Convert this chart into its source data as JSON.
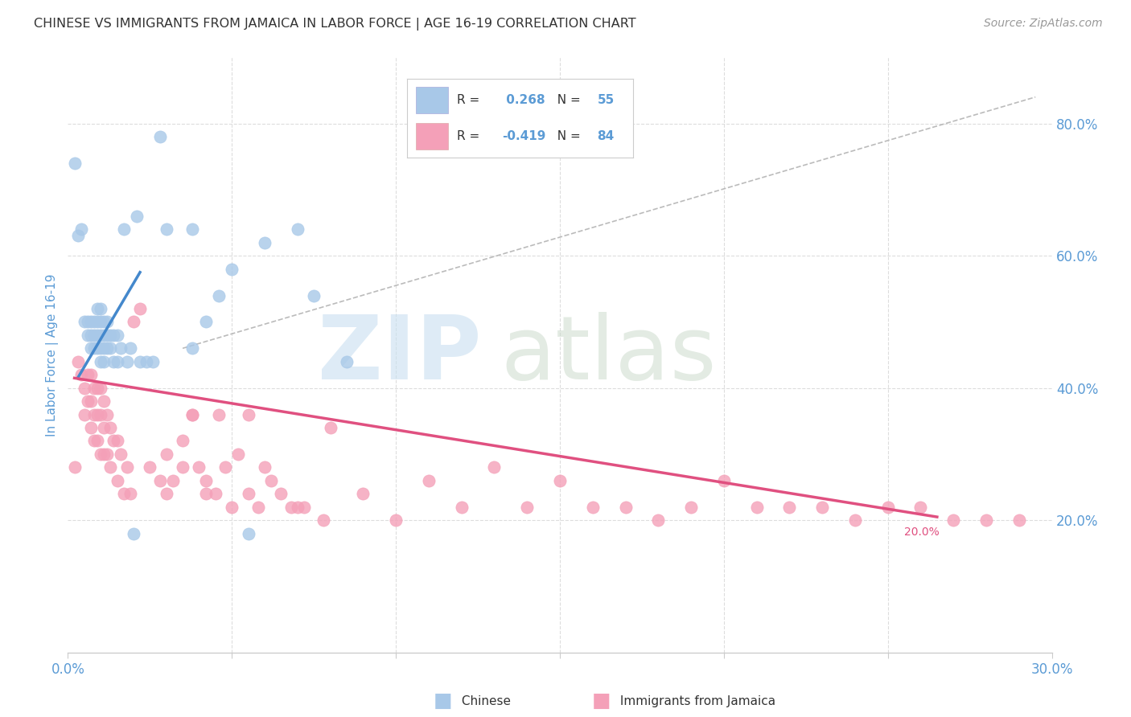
{
  "title": "CHINESE VS IMMIGRANTS FROM JAMAICA IN LABOR FORCE | AGE 16-19 CORRELATION CHART",
  "source": "Source: ZipAtlas.com",
  "ylabel": "In Labor Force | Age 16-19",
  "xlim": [
    0.0,
    0.3
  ],
  "ylim": [
    0.0,
    0.9
  ],
  "xticks": [
    0.0,
    0.05,
    0.1,
    0.15,
    0.2,
    0.25,
    0.3
  ],
  "xticklabels": [
    "0.0%",
    "",
    "",
    "",
    "",
    "",
    "30.0%"
  ],
  "yticks_right": [
    0.2,
    0.4,
    0.6,
    0.8
  ],
  "ytick_right_labels": [
    "20.0%",
    "40.0%",
    "60.0%",
    "80.0%"
  ],
  "watermark_zip": "ZIP",
  "watermark_atlas": "atlas",
  "legend_R1": "0.268",
  "legend_N1": "55",
  "legend_R2": "-0.419",
  "legend_N2": "84",
  "blue_scatter_color": "#a8c8e8",
  "pink_scatter_color": "#f4a0b8",
  "blue_line_color": "#4488cc",
  "pink_line_color": "#e05080",
  "dashed_line_color": "#bbbbbb",
  "axis_label_color": "#5b9bd5",
  "grid_color": "#dddddd",
  "chinese_points_x": [
    0.002,
    0.003,
    0.004,
    0.005,
    0.006,
    0.006,
    0.007,
    0.007,
    0.007,
    0.008,
    0.008,
    0.008,
    0.009,
    0.009,
    0.009,
    0.009,
    0.01,
    0.01,
    0.01,
    0.01,
    0.01,
    0.011,
    0.011,
    0.011,
    0.011,
    0.012,
    0.012,
    0.012,
    0.013,
    0.013,
    0.014,
    0.014,
    0.015,
    0.015,
    0.016,
    0.017,
    0.018,
    0.019,
    0.02,
    0.021,
    0.022,
    0.024,
    0.026,
    0.028,
    0.03,
    0.038,
    0.038,
    0.042,
    0.046,
    0.05,
    0.055,
    0.06,
    0.07,
    0.075,
    0.085
  ],
  "chinese_points_y": [
    0.74,
    0.63,
    0.64,
    0.5,
    0.5,
    0.48,
    0.5,
    0.48,
    0.46,
    0.5,
    0.48,
    0.46,
    0.52,
    0.5,
    0.48,
    0.46,
    0.52,
    0.5,
    0.48,
    0.46,
    0.44,
    0.5,
    0.48,
    0.46,
    0.44,
    0.5,
    0.48,
    0.46,
    0.48,
    0.46,
    0.48,
    0.44,
    0.48,
    0.44,
    0.46,
    0.64,
    0.44,
    0.46,
    0.18,
    0.66,
    0.44,
    0.44,
    0.44,
    0.78,
    0.64,
    0.64,
    0.46,
    0.5,
    0.54,
    0.58,
    0.18,
    0.62,
    0.64,
    0.54,
    0.44
  ],
  "jamaica_points_x": [
    0.002,
    0.003,
    0.004,
    0.005,
    0.005,
    0.006,
    0.006,
    0.007,
    0.007,
    0.007,
    0.008,
    0.008,
    0.008,
    0.009,
    0.009,
    0.009,
    0.01,
    0.01,
    0.01,
    0.011,
    0.011,
    0.011,
    0.012,
    0.012,
    0.013,
    0.013,
    0.014,
    0.015,
    0.015,
    0.016,
    0.017,
    0.018,
    0.019,
    0.02,
    0.022,
    0.025,
    0.028,
    0.03,
    0.032,
    0.035,
    0.038,
    0.042,
    0.046,
    0.05,
    0.055,
    0.06,
    0.065,
    0.07,
    0.08,
    0.09,
    0.1,
    0.11,
    0.12,
    0.13,
    0.14,
    0.15,
    0.16,
    0.17,
    0.18,
    0.19,
    0.2,
    0.21,
    0.22,
    0.23,
    0.24,
    0.25,
    0.26,
    0.27,
    0.28,
    0.29,
    0.03,
    0.035,
    0.038,
    0.04,
    0.042,
    0.045,
    0.048,
    0.052,
    0.055,
    0.058,
    0.062,
    0.068,
    0.072,
    0.078
  ],
  "jamaica_points_y": [
    0.28,
    0.44,
    0.42,
    0.4,
    0.36,
    0.42,
    0.38,
    0.42,
    0.38,
    0.34,
    0.4,
    0.36,
    0.32,
    0.4,
    0.36,
    0.32,
    0.4,
    0.36,
    0.3,
    0.38,
    0.34,
    0.3,
    0.36,
    0.3,
    0.34,
    0.28,
    0.32,
    0.32,
    0.26,
    0.3,
    0.24,
    0.28,
    0.24,
    0.5,
    0.52,
    0.28,
    0.26,
    0.24,
    0.26,
    0.28,
    0.36,
    0.24,
    0.36,
    0.22,
    0.36,
    0.28,
    0.24,
    0.22,
    0.34,
    0.24,
    0.2,
    0.26,
    0.22,
    0.28,
    0.22,
    0.26,
    0.22,
    0.22,
    0.2,
    0.22,
    0.26,
    0.22,
    0.22,
    0.22,
    0.2,
    0.22,
    0.22,
    0.2,
    0.2,
    0.2,
    0.3,
    0.32,
    0.36,
    0.28,
    0.26,
    0.24,
    0.28,
    0.3,
    0.24,
    0.22,
    0.26,
    0.22,
    0.22,
    0.2
  ],
  "blue_trendline_x": [
    0.003,
    0.022
  ],
  "blue_trendline_y": [
    0.415,
    0.575
  ],
  "pink_trendline_x": [
    0.002,
    0.265
  ],
  "pink_trendline_y": [
    0.415,
    0.205
  ],
  "dashed_trendline_x": [
    0.035,
    0.295
  ],
  "dashed_trendline_y": [
    0.46,
    0.84
  ]
}
